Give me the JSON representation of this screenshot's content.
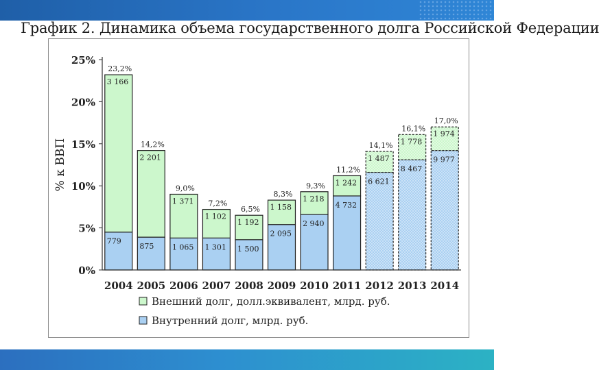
{
  "page": {
    "title": "График 2. Динамика объема государственного долга Российской Федерации"
  },
  "colors": {
    "external": "#ccf7cc",
    "internal": "#aad0f2",
    "edge": "#222222"
  },
  "chart_data": {
    "type": "bar",
    "stacked": true,
    "ylabel": "% к ВВП",
    "ylim": [
      0,
      25
    ],
    "yticks": [
      0,
      5,
      10,
      15,
      20,
      25
    ],
    "ytick_labels": [
      "0%",
      "5%",
      "10%",
      "15%",
      "20%",
      "25%"
    ],
    "categories": [
      "2004",
      "2005",
      "2006",
      "2007",
      "2008",
      "2009",
      "2010",
      "2011",
      "2012",
      "2013",
      "2014"
    ],
    "forecast_from_index": 8,
    "totals_labels": [
      "23,2%",
      "14,2%",
      "9,0%",
      "7,2%",
      "6,5%",
      "8,3%",
      "9,3%",
      "11,2%",
      "14,1%",
      "16,1%",
      "17,0%"
    ],
    "totals": [
      23.2,
      14.2,
      9.0,
      7.2,
      6.5,
      8.3,
      9.3,
      11.2,
      14.1,
      16.1,
      17.0
    ],
    "series": [
      {
        "name": "Внутренний долг, млрд. руб.",
        "key": "internal",
        "values": [
          4.5,
          3.9,
          3.8,
          3.8,
          3.6,
          5.4,
          6.6,
          8.8,
          11.6,
          13.1,
          14.2
        ],
        "labels": [
          "779",
          "875",
          "1 065",
          "1 301",
          "1 500",
          "2 095",
          "2 940",
          "4 732",
          "6 621",
          "8 467",
          "9 977"
        ]
      },
      {
        "name": "Внешний долг, долл.эквивалент, млрд. руб.",
        "key": "external",
        "values": [
          18.7,
          10.3,
          5.2,
          3.4,
          2.9,
          2.9,
          2.7,
          2.4,
          2.5,
          3.0,
          2.8
        ],
        "labels": [
          "3 166",
          "2 201",
          "1 371",
          "1 102",
          "1 192",
          "1 158",
          "1 218",
          "1 242",
          "1 487",
          "1 778",
          "1 974"
        ]
      }
    ],
    "legend": {
      "placement": "bottom",
      "order": [
        "external",
        "internal"
      ]
    }
  }
}
